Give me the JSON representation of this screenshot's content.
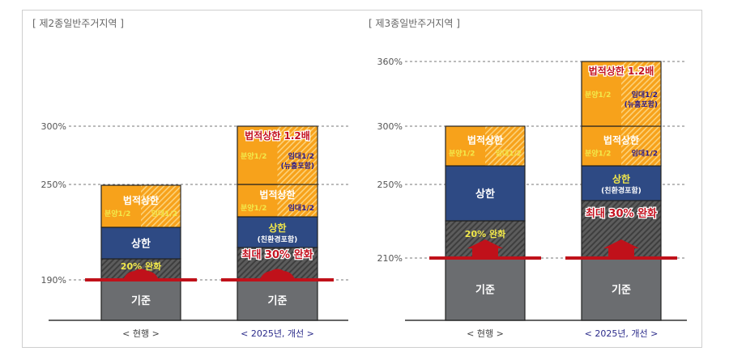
{
  "colors": {
    "base": "#6b6d70",
    "relax": "#5a5a5a",
    "cap": "#2e4a84",
    "legal": "#f7a21b",
    "redline": "#c0111a",
    "yellow": "#f2e84a",
    "white": "#ffffff",
    "navy": "#2a1a8a",
    "red": "#c41220",
    "axis_label": "#555555",
    "category_current": "#444444",
    "category_new": "#2a2a8a"
  },
  "chart_data": [
    {
      "type": "bar",
      "stacked": true,
      "title": "[ 제2종일반주거지역 ]",
      "yticks": [
        "300%",
        "250%",
        "190%"
      ],
      "grid": "dashed",
      "categories": [
        "< 현행 >",
        "< 2025년, 개선 >"
      ],
      "bars": [
        {
          "segments": [
            {
              "kind": "base",
              "lines": [
                {
                  "text": "기준",
                  "color": "white"
                }
              ]
            },
            {
              "kind": "relax",
              "lines": [
                {
                  "text": "20% 완화",
                  "color": "yellow"
                }
              ]
            },
            {
              "kind": "cap",
              "lines": [
                {
                  "text": "상한",
                  "color": "white"
                }
              ]
            },
            {
              "kind": "legal",
              "lines": [
                {
                  "text": "법적상한",
                  "color": "white"
                },
                {
                  "text": "분양1/2",
                  "color": "yellow"
                },
                {
                  "text": "임대1/2",
                  "color": "yellow"
                }
              ]
            }
          ]
        },
        {
          "segments": [
            {
              "kind": "base",
              "lines": [
                {
                  "text": "기준",
                  "color": "white"
                }
              ]
            },
            {
              "kind": "relax",
              "lines": [
                {
                  "text": "최대 30% 완화",
                  "color": "red"
                }
              ]
            },
            {
              "kind": "cap",
              "lines": [
                {
                  "text": "상한",
                  "color": "yellow"
                },
                {
                  "text": "(친환경포함)",
                  "color": "white"
                }
              ]
            },
            {
              "kind": "legal",
              "lines": [
                {
                  "text": "법적상한",
                  "color": "white"
                },
                {
                  "text": "분양1/2",
                  "color": "yellow"
                },
                {
                  "text": "임대1/2",
                  "color": "navy"
                }
              ]
            },
            {
              "kind": "legal12",
              "lines": [
                {
                  "text": "법적상한 1.2배",
                  "color": "red"
                },
                {
                  "text": "분양1/2",
                  "color": "yellow"
                },
                {
                  "text": "임대1/2",
                  "color": "navy"
                },
                {
                  "text": "(뉴홈포함)",
                  "color": "navy"
                }
              ]
            }
          ]
        }
      ]
    },
    {
      "type": "bar",
      "stacked": true,
      "title": "[ 제3종일반주거지역 ]",
      "yticks": [
        "360%",
        "300%",
        "250%",
        "210%"
      ],
      "grid": "dashed",
      "categories": [
        "< 현행 >",
        "< 2025년, 개선 >"
      ],
      "bars": [
        {
          "segments": [
            {
              "kind": "base",
              "lines": [
                {
                  "text": "기준",
                  "color": "white"
                }
              ]
            },
            {
              "kind": "relax",
              "lines": [
                {
                  "text": "20% 완화",
                  "color": "yellow"
                }
              ]
            },
            {
              "kind": "cap",
              "lines": [
                {
                  "text": "상한",
                  "color": "white"
                }
              ]
            },
            {
              "kind": "legal",
              "lines": [
                {
                  "text": "법적상한",
                  "color": "white"
                },
                {
                  "text": "분양1/2",
                  "color": "yellow"
                },
                {
                  "text": "임대1/2",
                  "color": "yellow"
                }
              ]
            }
          ]
        },
        {
          "segments": [
            {
              "kind": "base",
              "lines": [
                {
                  "text": "기준",
                  "color": "white"
                }
              ]
            },
            {
              "kind": "relax",
              "lines": [
                {
                  "text": "최대 30% 완화",
                  "color": "red"
                }
              ]
            },
            {
              "kind": "cap",
              "lines": [
                {
                  "text": "상한",
                  "color": "yellow"
                },
                {
                  "text": "(친환경포함)",
                  "color": "white"
                }
              ]
            },
            {
              "kind": "legal",
              "lines": [
                {
                  "text": "법적상한",
                  "color": "white"
                },
                {
                  "text": "분양1/2",
                  "color": "yellow"
                },
                {
                  "text": "임대1/2",
                  "color": "navy"
                }
              ]
            },
            {
              "kind": "legal12",
              "lines": [
                {
                  "text": "법적상한 1.2배",
                  "color": "red"
                },
                {
                  "text": "분양1/2",
                  "color": "yellow"
                },
                {
                  "text": "임대1/2",
                  "color": "navy"
                },
                {
                  "text": "(뉴홈포함)",
                  "color": "navy"
                }
              ]
            }
          ]
        }
      ]
    }
  ]
}
